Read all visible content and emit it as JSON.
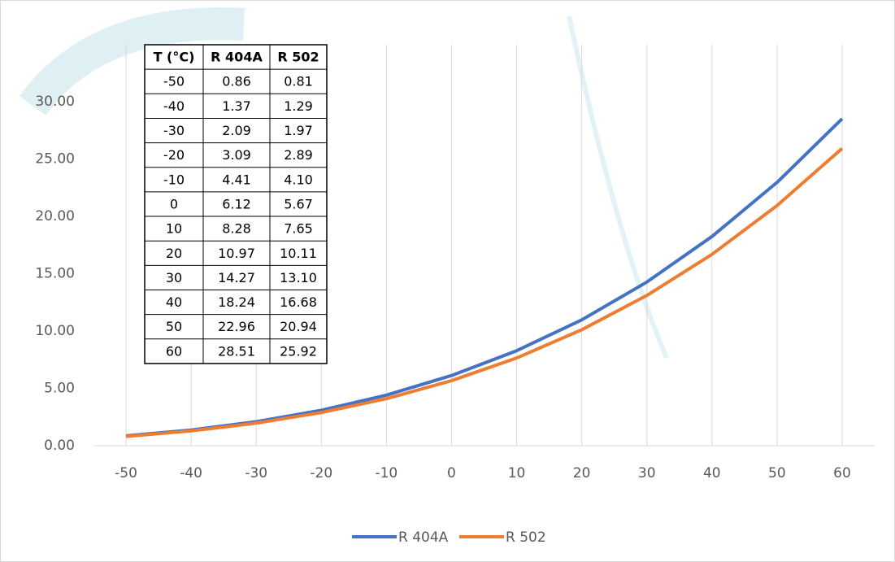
{
  "chart_data": {
    "type": "line",
    "categories": [
      "-50",
      "-40",
      "-30",
      "-20",
      "-10",
      "0",
      "10",
      "20",
      "30",
      "40",
      "50",
      "60"
    ],
    "series": [
      {
        "name": "R 404A",
        "color": "#4472c4",
        "values": [
          0.86,
          1.37,
          2.09,
          3.09,
          4.41,
          6.12,
          8.28,
          10.97,
          14.27,
          18.24,
          22.96,
          28.51
        ]
      },
      {
        "name": "R 502",
        "color": "#ed7d31",
        "values": [
          0.81,
          1.29,
          1.97,
          2.89,
          4.1,
          5.67,
          7.65,
          10.11,
          13.1,
          16.68,
          20.94,
          25.92
        ]
      }
    ],
    "ylim": [
      0,
      30
    ],
    "yticks": [
      {
        "value": 0,
        "label": "0.00"
      },
      {
        "value": 5,
        "label": "5.00"
      },
      {
        "value": 10,
        "label": "10.00"
      },
      {
        "value": 15,
        "label": "15.00"
      },
      {
        "value": 20,
        "label": "20.00"
      },
      {
        "value": 25,
        "label": "25.00"
      },
      {
        "value": 30,
        "label": "30.00"
      }
    ],
    "grid": true,
    "legend": "bottom"
  },
  "table": {
    "header": [
      "T (°C)",
      "R 404A",
      "R 502"
    ],
    "rows": [
      [
        "-50",
        "0.86",
        "0.81"
      ],
      [
        "-40",
        "1.37",
        "1.29"
      ],
      [
        "-30",
        "2.09",
        "1.97"
      ],
      [
        "-20",
        "3.09",
        "2.89"
      ],
      [
        "-10",
        "4.41",
        "4.10"
      ],
      [
        "0",
        "6.12",
        "5.67"
      ],
      [
        "10",
        "8.28",
        "7.65"
      ],
      [
        "20",
        "10.97",
        "10.11"
      ],
      [
        "30",
        "14.27",
        "13.10"
      ],
      [
        "40",
        "18.24",
        "16.68"
      ],
      [
        "50",
        "22.96",
        "20.94"
      ],
      [
        "60",
        "28.51",
        "25.92"
      ]
    ]
  }
}
